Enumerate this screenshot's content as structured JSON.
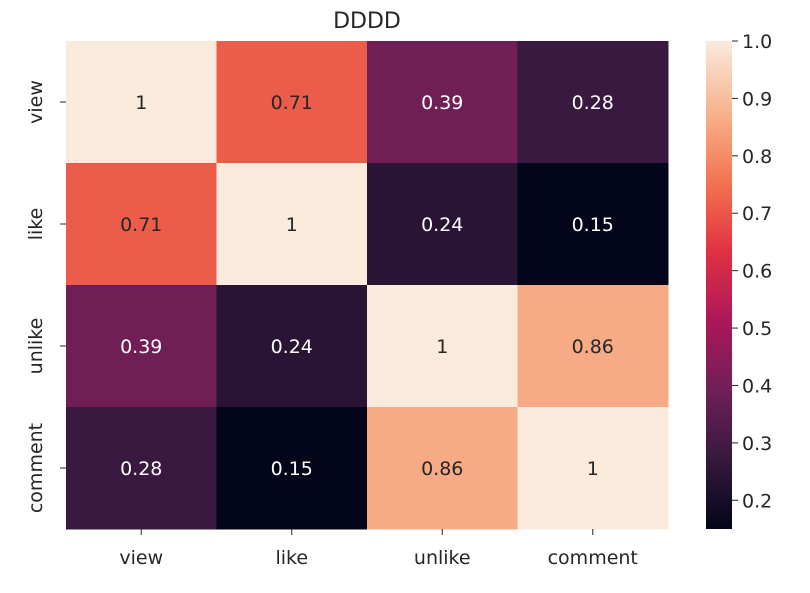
{
  "chart_data": {
    "type": "heatmap",
    "title": "DDDD",
    "xlabel": "",
    "ylabel": "",
    "x_categories": [
      "view",
      "like",
      "unlike",
      "comment"
    ],
    "y_categories": [
      "view",
      "like",
      "unlike",
      "comment"
    ],
    "values": [
      [
        1,
        0.71,
        0.39,
        0.28
      ],
      [
        0.71,
        1,
        0.24,
        0.15
      ],
      [
        0.39,
        0.24,
        1,
        0.86
      ],
      [
        0.28,
        0.15,
        0.86,
        1
      ]
    ],
    "annotations": [
      [
        "1",
        "0.71",
        "0.39",
        "0.28"
      ],
      [
        "0.71",
        "1",
        "0.24",
        "0.15"
      ],
      [
        "0.39",
        "0.24",
        "1",
        "0.86"
      ],
      [
        "0.28",
        "0.15",
        "0.86",
        "1"
      ]
    ],
    "colorbar": {
      "range": [
        0.15,
        1.0
      ],
      "ticks": [
        "0.2",
        "0.3",
        "0.4",
        "0.5",
        "0.6",
        "0.7",
        "0.8",
        "0.9",
        "1.0"
      ],
      "tick_values": [
        0.2,
        0.3,
        0.4,
        0.5,
        0.6,
        0.7,
        0.8,
        0.9,
        1.0
      ],
      "colormap": "rocket",
      "colormap_stops": [
        "#03051a",
        "#36193e",
        "#701f57",
        "#ad1759",
        "#e13342",
        "#f37651",
        "#f6b48f",
        "#faebdd"
      ]
    },
    "grid": false
  }
}
